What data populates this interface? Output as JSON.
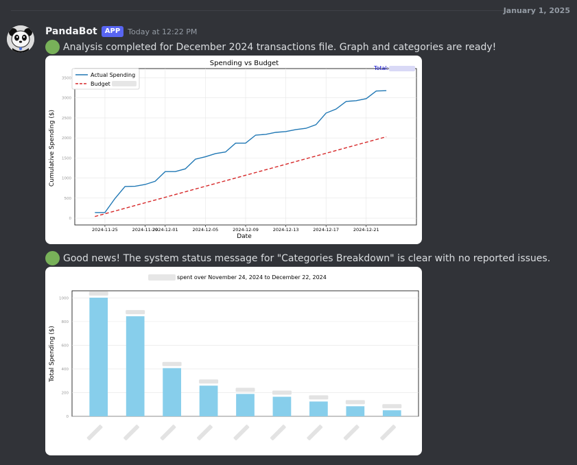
{
  "header": {
    "date_divider": "January 1, 2025"
  },
  "message": {
    "author": "PandaBot",
    "badge": "APP",
    "timestamp": "Today at 12:22 PM",
    "line1": "Analysis completed for December 2024 transactions file. Graph and categories are ready!",
    "line2": "Good news! The system status message for \"Categories Breakdown\" is clear with no reported issues."
  },
  "avatar_icon": "panda-icon",
  "status_icon": "green-circle-icon",
  "colors": {
    "background": "#313338",
    "accent": "#5865f2",
    "green": "#78b159",
    "line_actual": "#1f77b4",
    "line_budget": "#d62728",
    "bar": "#87ceeb"
  },
  "chart_data": [
    {
      "type": "line",
      "title": "Spending vs Budget",
      "xlabel": "Date",
      "ylabel": "Cumulative Spending ($)",
      "total_label": "Total:",
      "x_ticks": [
        "2024-11-25",
        "2024-11-29",
        "2024-12-01",
        "2024-12-05",
        "2024-12-09",
        "2024-12-13",
        "2024-12-17",
        "2024-12-21"
      ],
      "y_ticks": [
        "0",
        "500",
        "1000",
        "1500",
        "2000",
        "2500",
        "3000",
        "3500"
      ],
      "ylim": [
        0,
        3800
      ],
      "grid": true,
      "legend_position": "top-left",
      "series": [
        {
          "name": "Actual Spending",
          "style": "solid",
          "x": [
            "2024-11-24",
            "2024-11-25",
            "2024-11-26",
            "2024-11-27",
            "2024-11-28",
            "2024-11-29",
            "2024-11-30",
            "2024-12-01",
            "2024-12-02",
            "2024-12-03",
            "2024-12-04",
            "2024-12-05",
            "2024-12-06",
            "2024-12-07",
            "2024-12-08",
            "2024-12-09",
            "2024-12-10",
            "2024-12-11",
            "2024-12-12",
            "2024-12-13",
            "2024-12-14",
            "2024-12-15",
            "2024-12-16",
            "2024-12-17",
            "2024-12-18",
            "2024-12-19",
            "2024-12-20",
            "2024-12-21",
            "2024-12-22",
            "2024-12-23"
          ],
          "values": [
            140,
            140,
            490,
            790,
            795,
            840,
            920,
            1160,
            1160,
            1230,
            1470,
            1530,
            1610,
            1650,
            1870,
            1870,
            2070,
            2090,
            2140,
            2160,
            2210,
            2240,
            2330,
            2620,
            2720,
            2910,
            2930,
            2980,
            3170,
            3180
          ]
        },
        {
          "name": "Budget",
          "style": "dashed",
          "x": [
            "2024-11-24",
            "2024-12-23"
          ],
          "values": [
            40,
            2030
          ]
        }
      ]
    },
    {
      "type": "bar",
      "subtitle": "spent over November 24, 2024 to December 22, 2024",
      "ylabel": "Total Spending ($)",
      "y_ticks": [
        "0",
        "200",
        "400",
        "600",
        "800",
        "1000"
      ],
      "ylim": [
        0,
        1060
      ],
      "grid": true,
      "values": [
        1002,
        845,
        407,
        259,
        189,
        165,
        125,
        85,
        51
      ]
    }
  ]
}
